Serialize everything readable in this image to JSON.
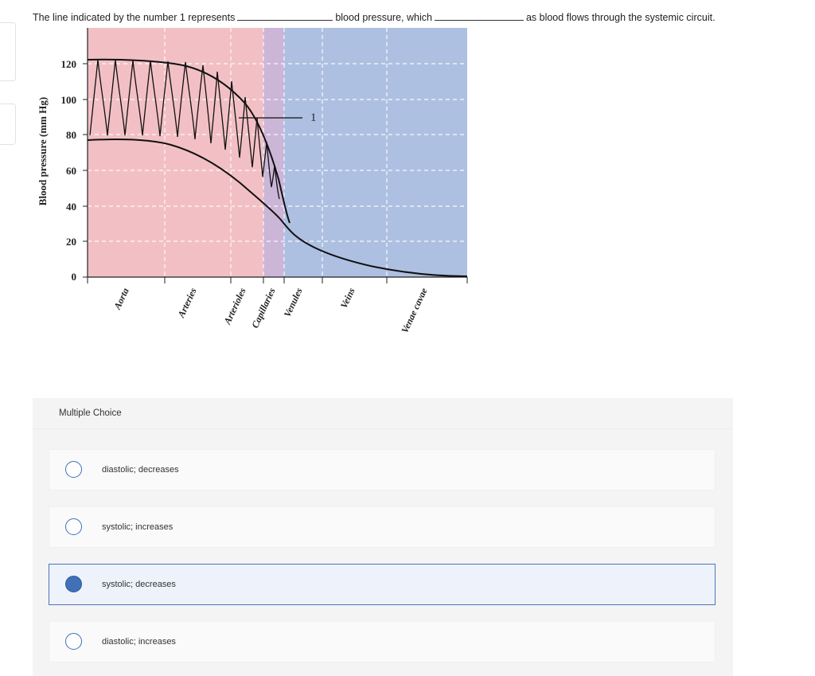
{
  "question": {
    "part1": "The line indicated by the number 1 represents",
    "part2": "blood pressure, which",
    "part3": "as blood flows through the systemic circuit."
  },
  "figure": {
    "ylabel": "Blood pressure (mm Hg)",
    "yticks": [
      "120",
      "100",
      "80",
      "60",
      "40",
      "20",
      "0"
    ],
    "xlabels": [
      "Aorta",
      "Arteries",
      "Arterioles",
      "Capillaries",
      "Venules",
      "Veins",
      "Venae cavae"
    ],
    "callout": "1",
    "colors": {
      "arterial": "#f2c0c4",
      "capillary": "#cbb6d8",
      "venous": "#aec0e2"
    }
  },
  "multiple_choice": {
    "header": "Multiple Choice",
    "options": [
      {
        "label": "diastolic; decreases",
        "selected": false
      },
      {
        "label": "systolic; increases",
        "selected": false
      },
      {
        "label": "systolic; decreases",
        "selected": true
      },
      {
        "label": "diastolic; increases",
        "selected": false
      }
    ]
  }
}
